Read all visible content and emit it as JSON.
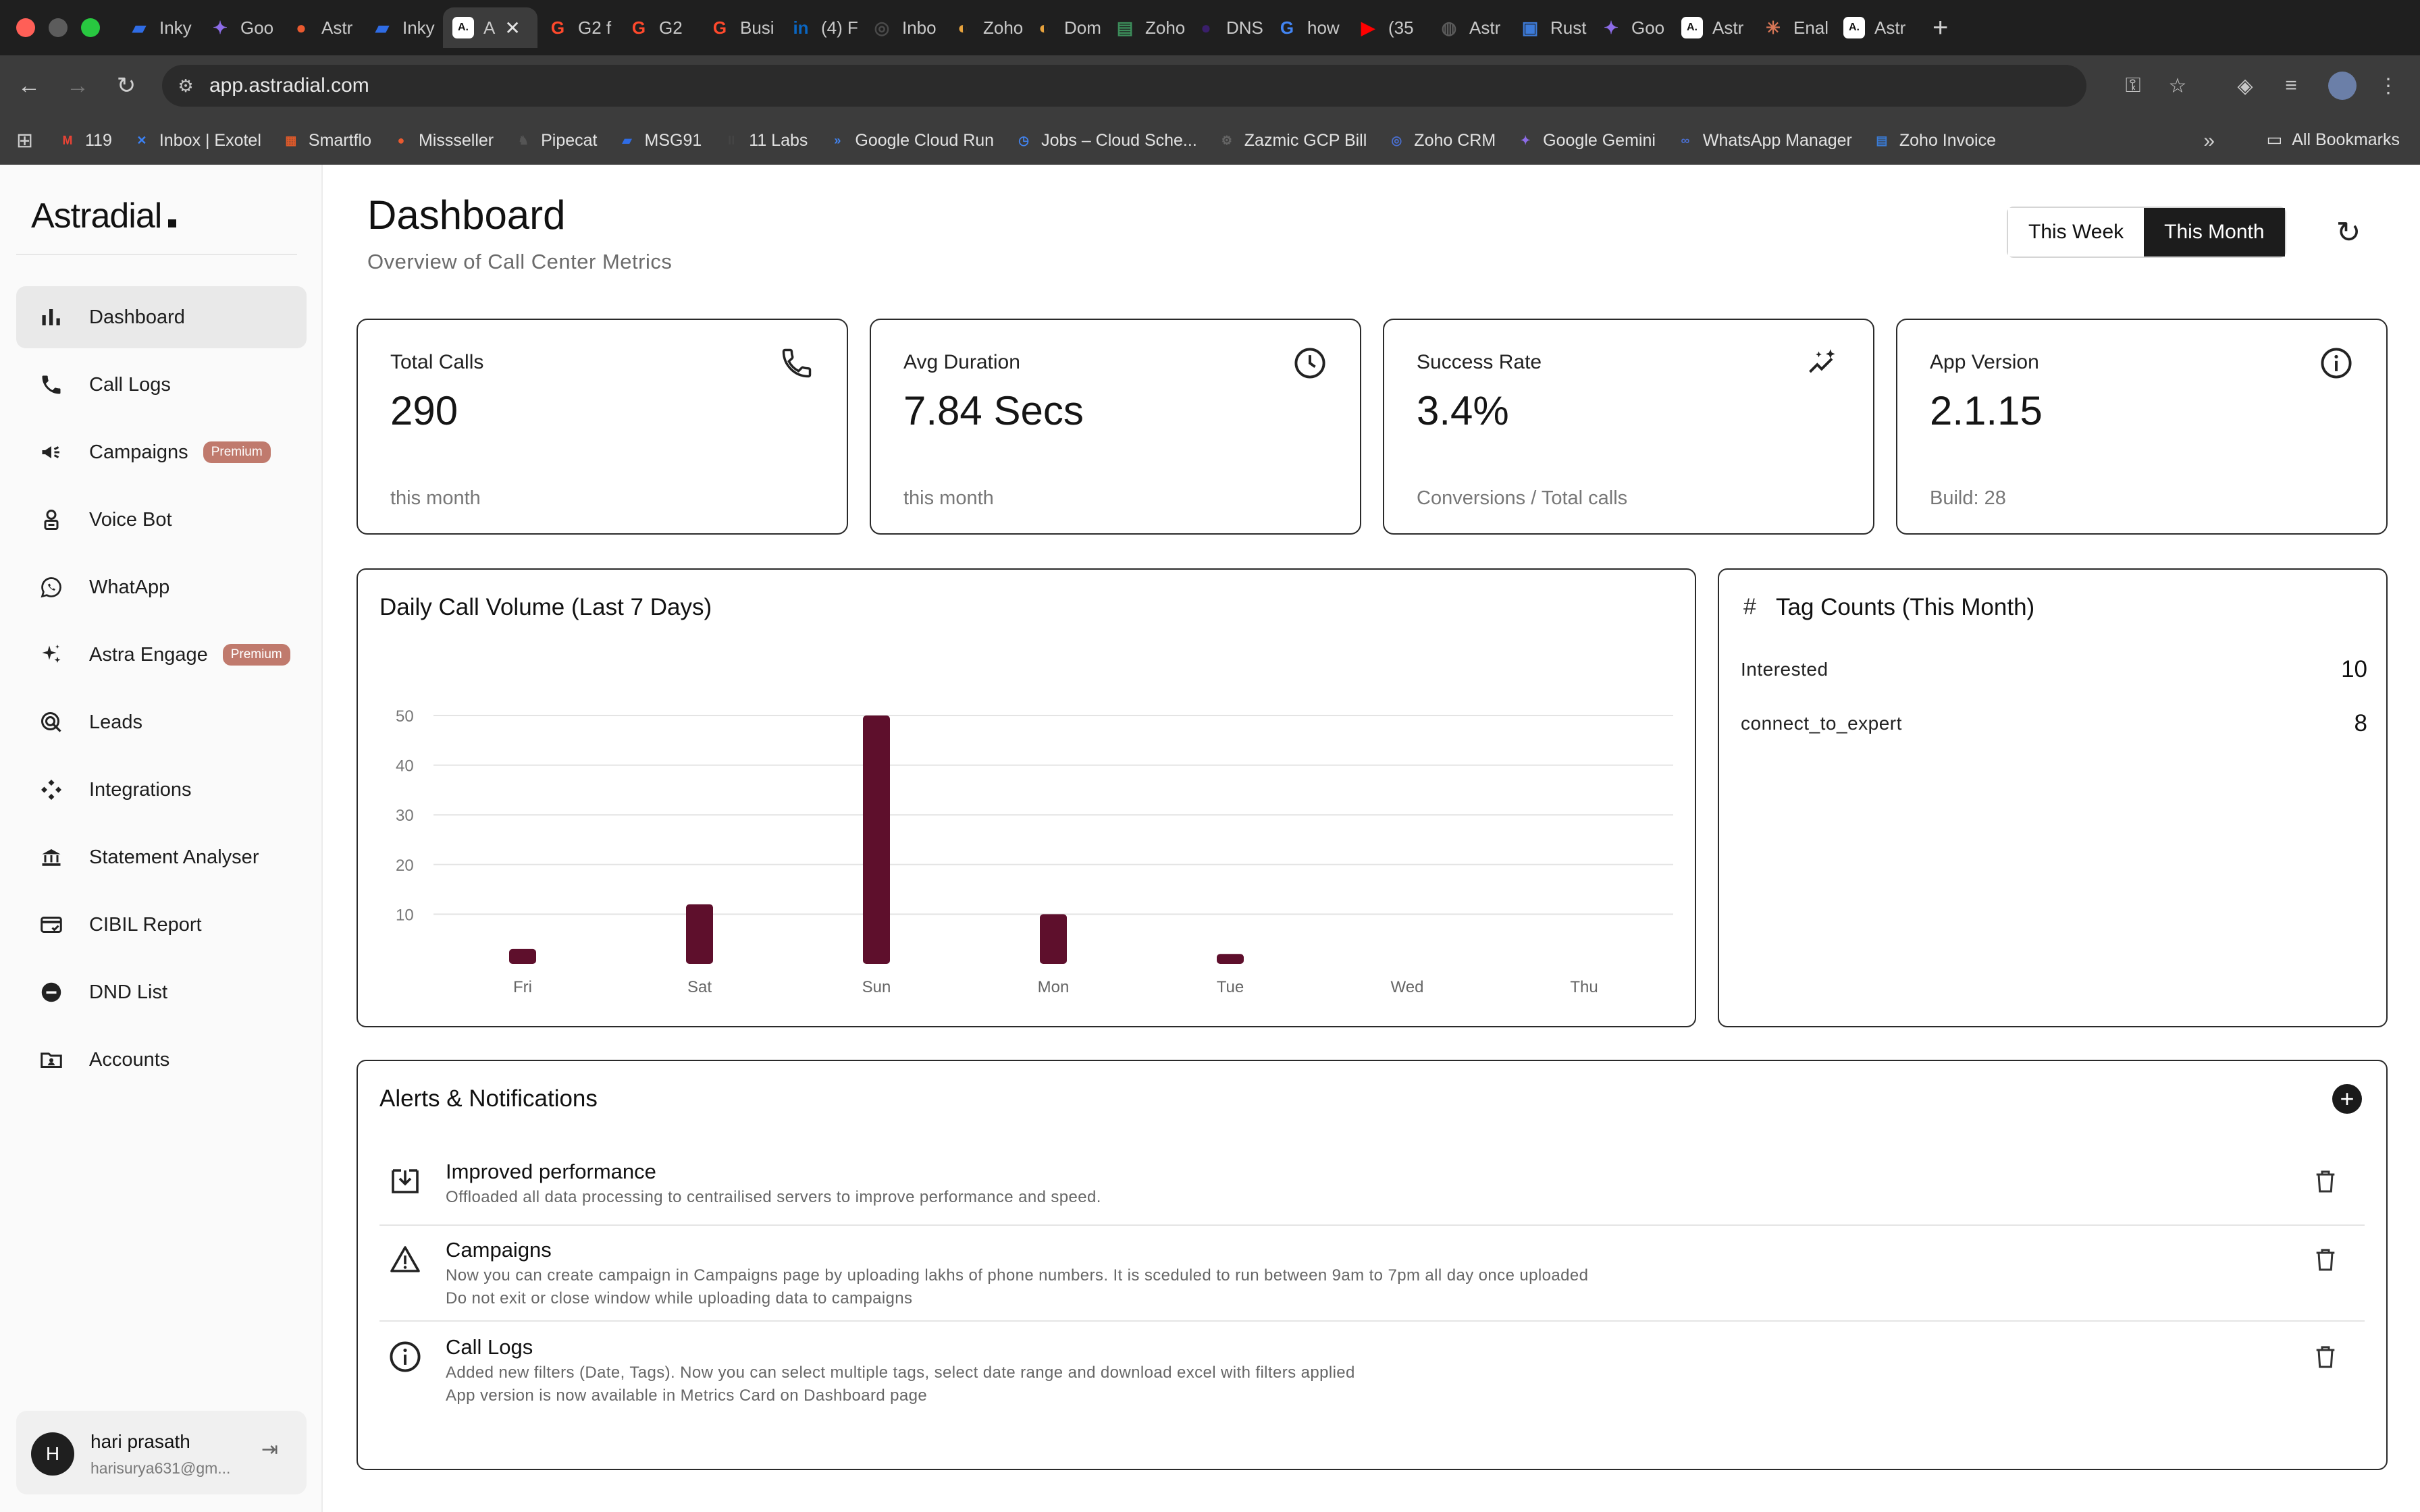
{
  "browser": {
    "tabs": [
      {
        "title": "Inky",
        "icon_color": "#2f6ce5",
        "glyph": "▰"
      },
      {
        "title": "Goo",
        "icon_color": "#8d6ce8",
        "glyph": "✦"
      },
      {
        "title": "Astr",
        "icon_color": "#ea5a2f",
        "glyph": "●"
      },
      {
        "title": "Inky",
        "icon_color": "#2f6ce5",
        "glyph": "▰"
      },
      {
        "title": "A",
        "icon_color": "#ffffff",
        "glyph": "A.",
        "active": true
      },
      {
        "title": "G2 f",
        "icon_color": "#ff492c",
        "glyph": "G"
      },
      {
        "title": "G2",
        "icon_color": "#ff492c",
        "glyph": "G"
      },
      {
        "title": "Busi",
        "icon_color": "#ff492c",
        "glyph": "G"
      },
      {
        "title": "(4) F",
        "icon_color": "#0a66c2",
        "glyph": "in"
      },
      {
        "title": "Inbo",
        "icon_color": "#4a4a4a",
        "glyph": "◎"
      },
      {
        "title": "Zoho",
        "icon_color": "#e8a33d",
        "glyph": "◐"
      },
      {
        "title": "Dom",
        "icon_color": "#e8a33d",
        "glyph": "◐"
      },
      {
        "title": "Zoho",
        "icon_color": "#3c8d5a",
        "glyph": "▤"
      },
      {
        "title": "DNS",
        "icon_color": "#3a1f6b",
        "glyph": "●"
      },
      {
        "title": "how",
        "icon_color": "#4285f4",
        "glyph": "G"
      },
      {
        "title": "(35",
        "icon_color": "#ff0000",
        "glyph": "▶"
      },
      {
        "title": "Astr",
        "icon_color": "#5a5a5a",
        "glyph": "◍"
      },
      {
        "title": "Rust",
        "icon_color": "#3d7bd9",
        "glyph": "▣"
      },
      {
        "title": "Goo",
        "icon_color": "#8d6ce8",
        "glyph": "✦"
      },
      {
        "title": "Astr",
        "icon_color": "#ffffff",
        "glyph": "A."
      },
      {
        "title": "Enal",
        "icon_color": "#d97757",
        "glyph": "✳"
      },
      {
        "title": "Astr",
        "icon_color": "#ffffff",
        "glyph": "A."
      }
    ],
    "url": "app.astradial.com",
    "bookmarks": [
      {
        "label": "119",
        "icon_color": "#ea4335",
        "glyph": "M"
      },
      {
        "label": "Inbox | Exotel",
        "icon_color": "#3b82f6",
        "glyph": "✕"
      },
      {
        "label": "Smartflo",
        "icon_color": "#e05a2a",
        "glyph": "▦"
      },
      {
        "label": "Missseller",
        "icon_color": "#ea5a2f",
        "glyph": "●"
      },
      {
        "label": "Pipecat",
        "icon_color": "#555555",
        "glyph": "♞"
      },
      {
        "label": "MSG91",
        "icon_color": "#2f6ce5",
        "glyph": "▰"
      },
      {
        "label": "11 Labs",
        "icon_color": "#444444",
        "glyph": "II"
      },
      {
        "label": "Google Cloud Run",
        "icon_color": "#4285f4",
        "glyph": "»"
      },
      {
        "label": "Jobs – Cloud Sche...",
        "icon_color": "#4285f4",
        "glyph": "◷"
      },
      {
        "label": "Zazmic GCP Bill",
        "icon_color": "#666666",
        "glyph": "⚙"
      },
      {
        "label": "Zoho CRM",
        "icon_color": "#4a6fd0",
        "glyph": "◎"
      },
      {
        "label": "Google Gemini",
        "icon_color": "#8d6ce8",
        "glyph": "✦"
      },
      {
        "label": "WhatsApp Manager",
        "icon_color": "#4a6fd0",
        "glyph": "∞"
      },
      {
        "label": "Zoho Invoice",
        "icon_color": "#3a7bd5",
        "glyph": "▤"
      }
    ],
    "all_bookmarks": "All Bookmarks"
  },
  "sidebar": {
    "brand": "Astradial",
    "items": [
      {
        "label": "Dashboard",
        "icon": "bar-chart-icon",
        "active": true
      },
      {
        "label": "Call Logs",
        "icon": "phone-icon"
      },
      {
        "label": "Campaigns",
        "icon": "megaphone-icon",
        "badge": "Premium"
      },
      {
        "label": "Voice Bot",
        "icon": "bot-icon"
      },
      {
        "label": "WhatApp",
        "icon": "whatsapp-icon"
      },
      {
        "label": "Astra Engage",
        "icon": "sparkles-icon",
        "badge": "Premium"
      },
      {
        "label": "Leads",
        "icon": "target-icon"
      },
      {
        "label": "Integrations",
        "icon": "integrations-icon"
      },
      {
        "label": "Statement Analyser",
        "icon": "bank-icon"
      },
      {
        "label": "CIBIL Report",
        "icon": "card-check-icon"
      },
      {
        "label": "DND List",
        "icon": "minus-circle-icon"
      },
      {
        "label": "Accounts",
        "icon": "folder-user-icon"
      }
    ],
    "user": {
      "initial": "H",
      "name": "hari prasath",
      "email": "harisurya631@gm..."
    }
  },
  "header": {
    "title": "Dashboard",
    "subtitle": "Overview of Call Center Metrics",
    "range_options": [
      "This Week",
      "This Month"
    ],
    "range_selected": "This Month"
  },
  "cards": [
    {
      "label": "Total Calls",
      "value": "290",
      "foot": "this month",
      "icon": "phone-icon"
    },
    {
      "label": "Avg Duration",
      "value": "7.84 Secs",
      "foot": "this month",
      "icon": "clock-icon"
    },
    {
      "label": "Success Rate",
      "value": "3.4%",
      "foot": "Conversions / Total calls",
      "icon": "trend-sparkle-icon"
    },
    {
      "label": "App Version",
      "value": "2.1.15",
      "foot": "Build: 28",
      "icon": "info-icon"
    }
  ],
  "chart_data": {
    "type": "bar",
    "title": "Daily Call Volume (Last 7 Days)",
    "categories": [
      "Fri",
      "Sat",
      "Sun",
      "Mon",
      "Tue",
      "Wed",
      "Thu"
    ],
    "values": [
      3,
      12,
      50,
      10,
      2,
      0,
      0
    ],
    "yticks": [
      10,
      20,
      30,
      40,
      50
    ],
    "ylim": [
      0,
      50
    ],
    "grid": true,
    "bar_color": "#5e0f2c"
  },
  "tags": {
    "title": "Tag Counts (This Month)",
    "items": [
      {
        "name": "Interested",
        "count": "10"
      },
      {
        "name": "connect_to_expert",
        "count": "8"
      }
    ]
  },
  "alerts": {
    "title": "Alerts & Notifications",
    "items": [
      {
        "title": "Improved performance",
        "icon": "download-tray-icon",
        "lines": [
          "Offloaded all data processing to centrailised servers to improve performance and speed."
        ]
      },
      {
        "title": "Campaigns",
        "icon": "warning-icon",
        "lines": [
          "Now you can create campaign in Campaigns page by uploading lakhs of phone numbers. It is sceduled to run between 9am to 7pm all day once uploaded",
          "Do not exit or close window while uploading data to campaigns"
        ]
      },
      {
        "title": "Call Logs",
        "icon": "info-icon",
        "lines": [
          "Added new filters (Date, Tags). Now you can select multiple tags, select date range and download excel with filters applied",
          "App version is now available in Metrics Card on Dashboard page"
        ]
      }
    ]
  }
}
